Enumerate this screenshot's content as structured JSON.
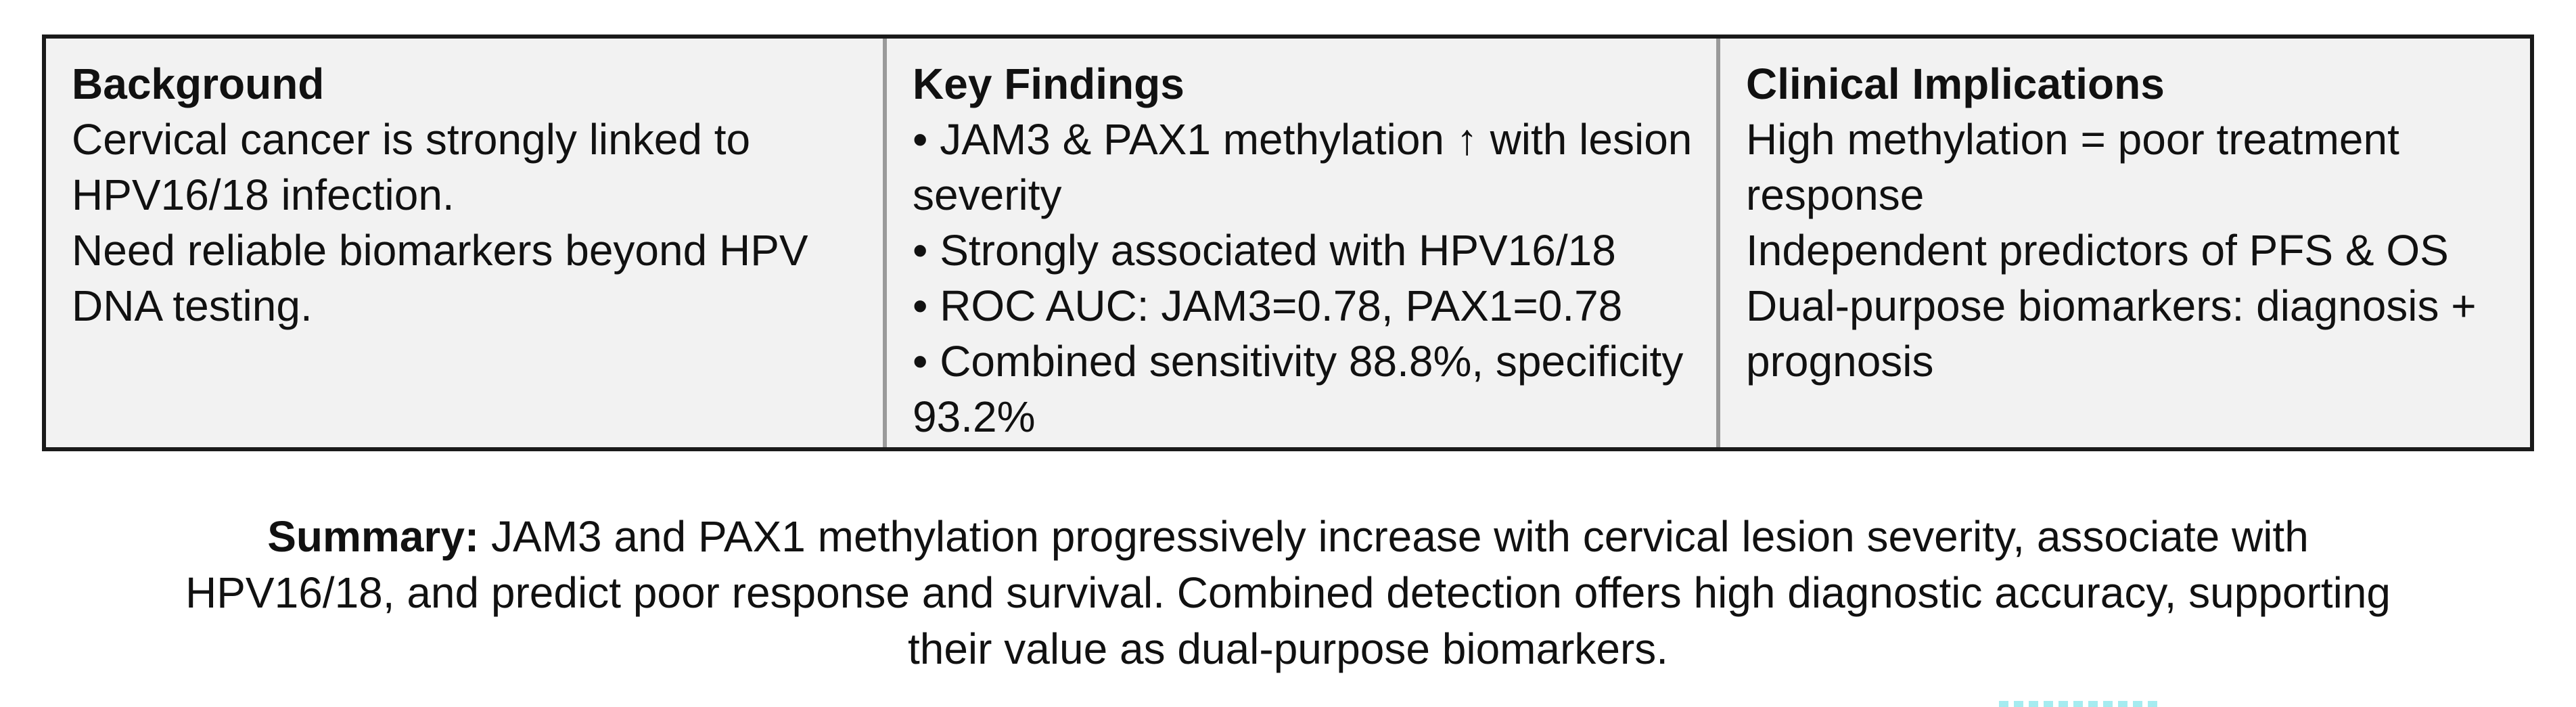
{
  "panels": [
    {
      "heading": "Background",
      "lines": [
        "Cervical cancer is strongly linked to HPV16/18 infection.",
        "Need reliable biomarkers beyond HPV DNA testing."
      ]
    },
    {
      "heading": "Key Findings",
      "lines": [
        "• JAM3 & PAX1 methylation ↑ with lesion severity",
        "• Strongly associated with HPV16/18",
        "• ROC AUC: JAM3=0.78, PAX1=0.78",
        "• Combined sensitivity 88.8%, specificity 93.2%"
      ]
    },
    {
      "heading": "Clinical Implications",
      "lines": [
        "High methylation = poor treatment response",
        "Independent predictors of PFS & OS",
        "Dual-purpose biomarkers: diagnosis + prognosis"
      ]
    }
  ],
  "summary": {
    "label": "Summary:",
    "text": " JAM3 and PAX1 methylation progressively increase with cervical lesion severity, associate with HPV16/18, and predict poor response and survival. Combined detection offers high diagnostic accuracy, supporting their value as dual-purpose biomarkers."
  },
  "colors": {
    "panel_background": "#f2f2f2",
    "outer_border": "#1a1a1a",
    "divider": "#9a9a9a",
    "text": "#111111"
  }
}
